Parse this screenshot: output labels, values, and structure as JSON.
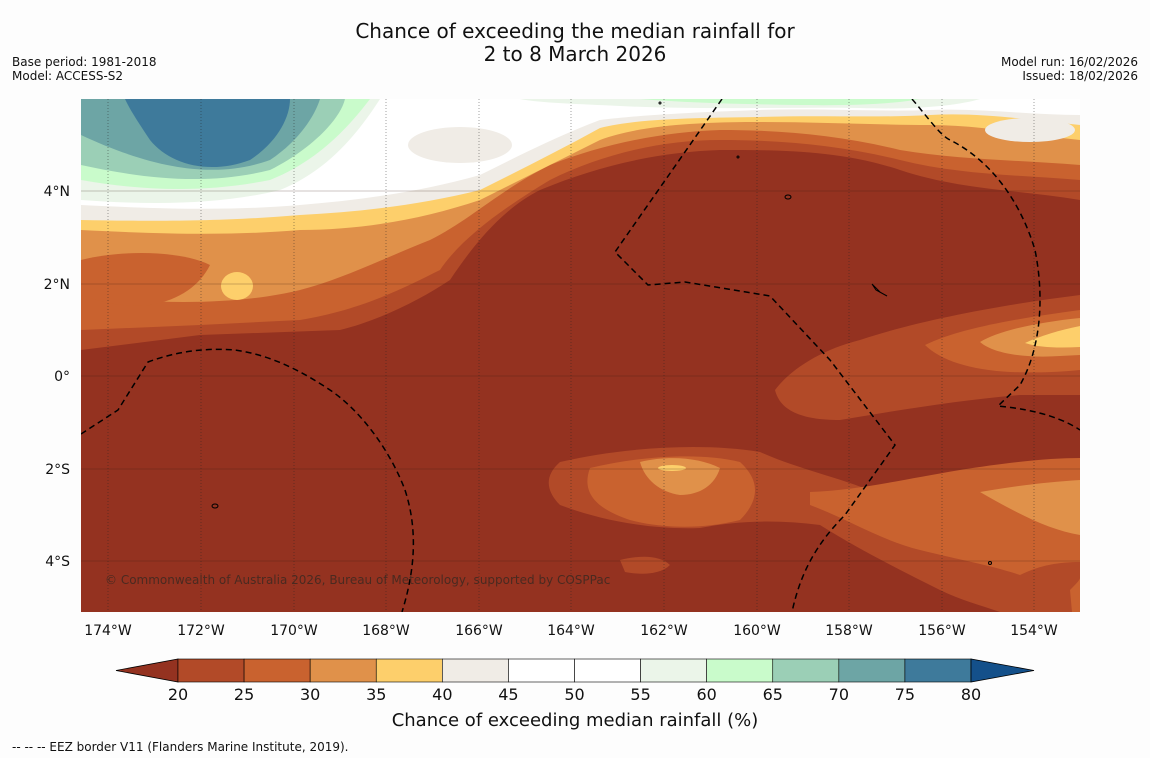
{
  "title": {
    "line1": "Chance of exceeding the median rainfall for",
    "line2": "2 to 8 March 2026"
  },
  "meta_left": {
    "base_period": "Base period: 1981-2018",
    "model": "Model: ACCESS-S2"
  },
  "meta_right": {
    "model_run": "Model run: 16/02/2026",
    "issued": "Issued: 18/02/2026"
  },
  "map": {
    "lat_labels": [
      "4°N",
      "2°N",
      "0°",
      "2°S",
      "4°S"
    ],
    "lon_labels": [
      "174°W",
      "172°W",
      "170°W",
      "168°W",
      "166°W",
      "164°W",
      "162°W",
      "160°W",
      "158°W",
      "156°W",
      "154°W"
    ],
    "copyright": "© Commonwealth of Australia 2026, Bureau of Meteorology, supported by COSPPac"
  },
  "colorbar": {
    "ticks": [
      "20",
      "25",
      "30",
      "35",
      "40",
      "45",
      "50",
      "55",
      "60",
      "65",
      "70",
      "75",
      "80"
    ],
    "colors": [
      "#943220",
      "#b24a28",
      "#c9622f",
      "#e0914a",
      "#fdcf6b",
      "#f0ece6",
      "#ffffff",
      "#ffffff",
      "#ebf5e9",
      "#c9fbcb",
      "#9bcfb6",
      "#6da5a5",
      "#3e7a9b",
      "#14508a"
    ],
    "label": "Chance of exceeding median rainfall (%)"
  },
  "footnote": "--  --  -- EEZ border V11 (Flanders Marine Institute, 2019)."
}
